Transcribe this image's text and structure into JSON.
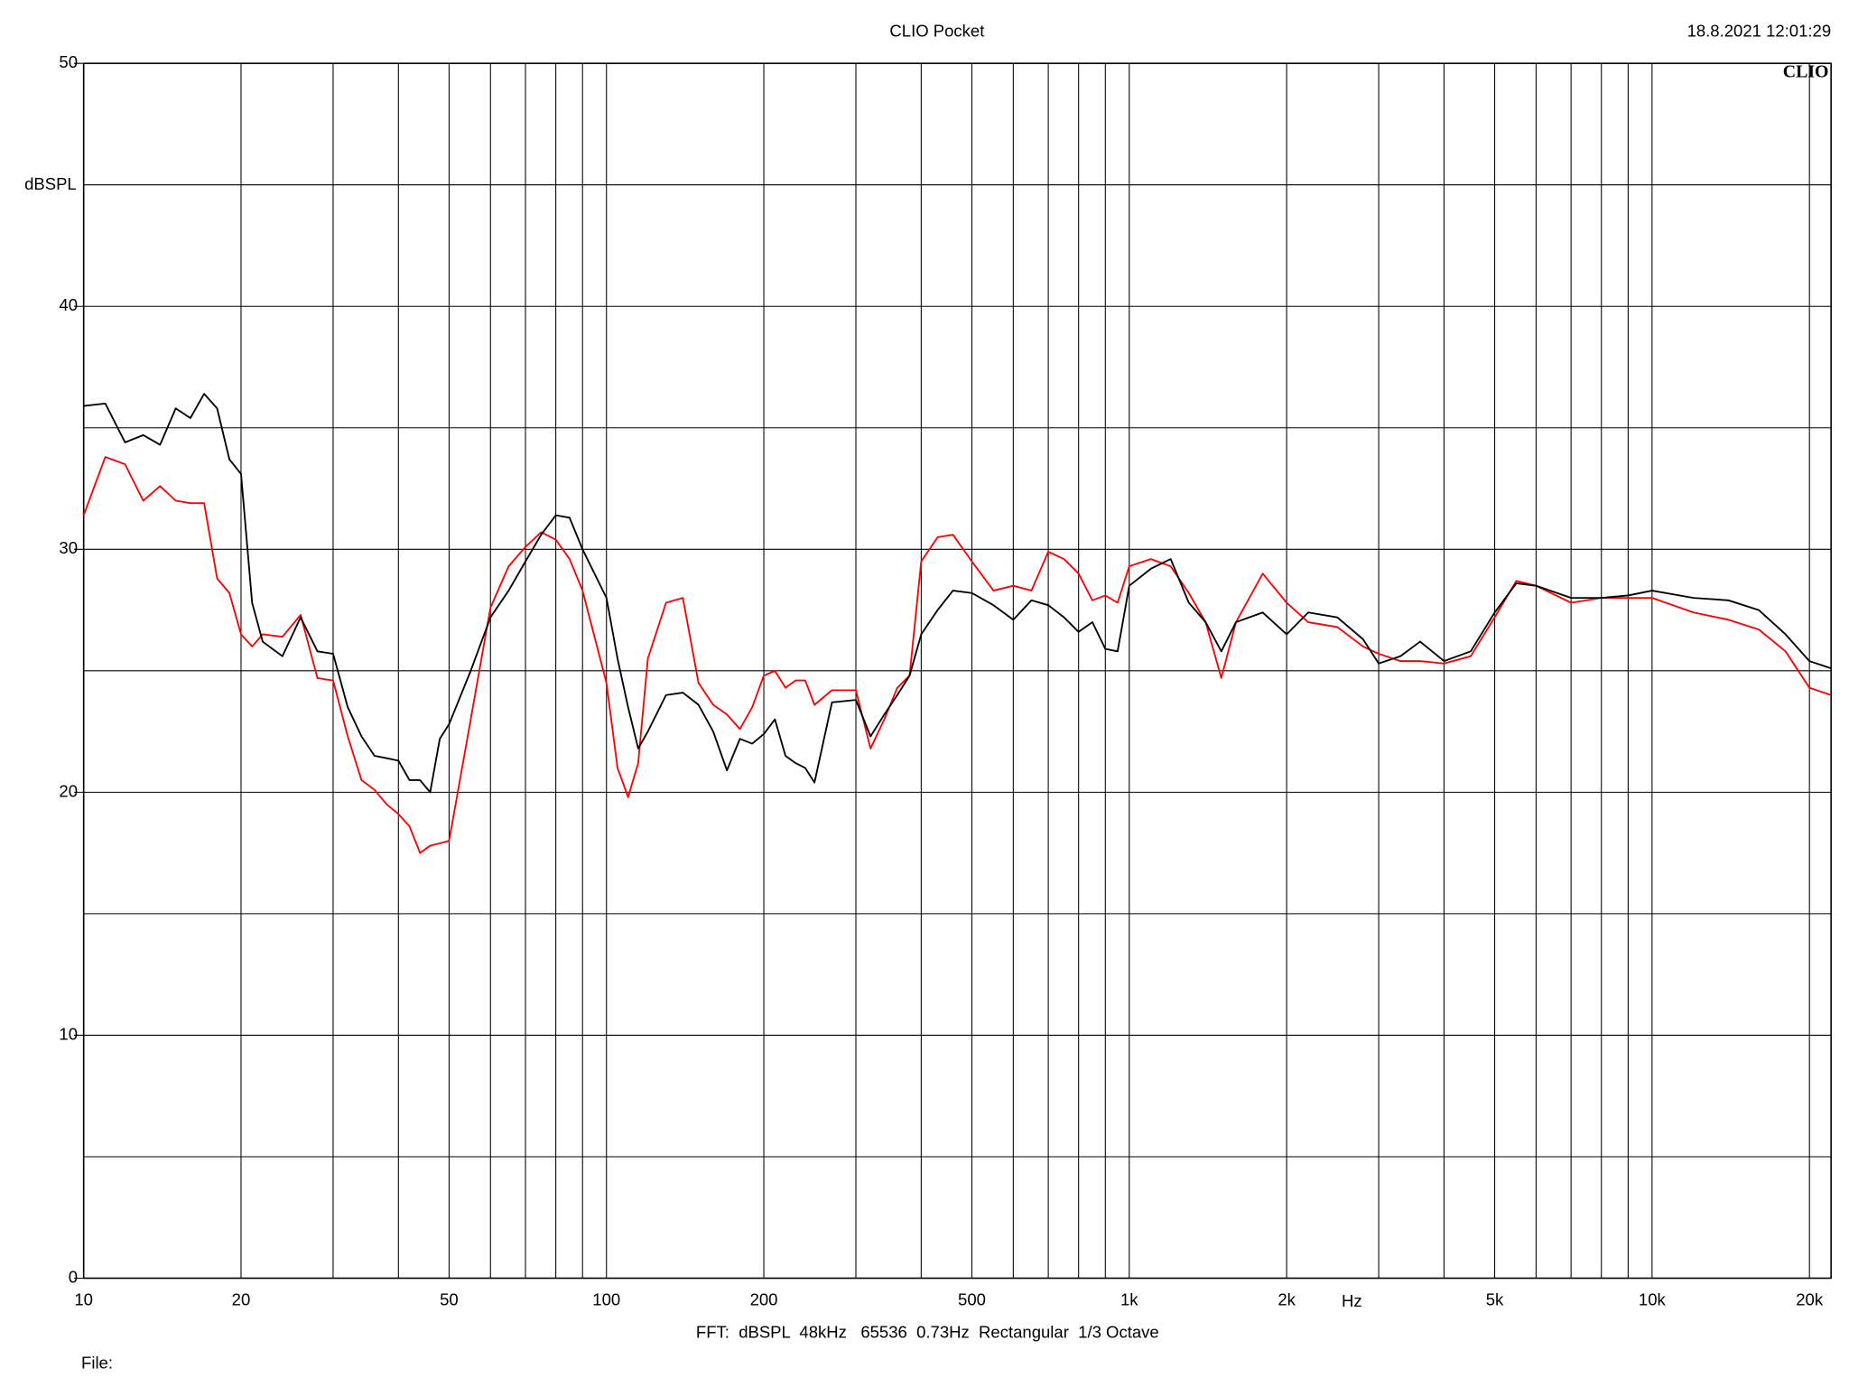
{
  "chart_data": {
    "type": "line",
    "title": "CLIO Pocket",
    "timestamp": "18.8.2021 12:01:29",
    "logo": "CLIO",
    "y_label": "dBSPL",
    "x_label": "Hz",
    "footer": "FFT:  dBSPL  48kHz   65536  0.73Hz  Rectangular  1/3 Octave",
    "file_label": "File:",
    "xscale": "log",
    "xlim": [
      10,
      22000
    ],
    "xticks": [
      10,
      20,
      50,
      100,
      200,
      500,
      {
        "value": 1000,
        "label": "1k"
      },
      {
        "value": 2000,
        "label": "2k"
      },
      {
        "value": 5000,
        "label": "5k"
      },
      {
        "value": 10000,
        "label": "10k"
      },
      {
        "value": 20000,
        "label": "20k"
      }
    ],
    "xminor": [
      30,
      40,
      60,
      70,
      80,
      90,
      300,
      400,
      600,
      700,
      800,
      900,
      3000,
      4000,
      6000,
      7000,
      8000,
      9000
    ],
    "ylim": [
      0,
      50
    ],
    "yticks": [
      0,
      10,
      20,
      30,
      40,
      50
    ],
    "yminor": [
      5,
      15,
      25,
      35,
      45
    ],
    "grid": true,
    "x": [
      10,
      11,
      12,
      13,
      14,
      15,
      16,
      17,
      18,
      19,
      20,
      21,
      22,
      24,
      26,
      28,
      30,
      32,
      34,
      36,
      38,
      40,
      42,
      44,
      46,
      48,
      50,
      55,
      60,
      65,
      70,
      75,
      80,
      85,
      90,
      100,
      105,
      110,
      115,
      120,
      130,
      140,
      150,
      160,
      170,
      180,
      190,
      200,
      210,
      220,
      230,
      240,
      250,
      270,
      300,
      320,
      340,
      360,
      380,
      400,
      430,
      460,
      500,
      550,
      600,
      650,
      700,
      750,
      800,
      850,
      900,
      950,
      1000,
      1100,
      1200,
      1300,
      1400,
      1500,
      1600,
      1800,
      2000,
      2200,
      2500,
      2800,
      3000,
      3300,
      3600,
      4000,
      4500,
      5000,
      5500,
      6000,
      7000,
      8000,
      9000,
      10000,
      12000,
      14000,
      16000,
      18000,
      20000,
      22000
    ],
    "series": [
      {
        "color": "#000000",
        "values": [
          35.9,
          36.0,
          34.4,
          34.7,
          34.3,
          35.8,
          35.4,
          36.4,
          35.8,
          33.7,
          33.1,
          27.8,
          26.2,
          25.6,
          27.2,
          25.8,
          25.7,
          23.5,
          22.3,
          21.5,
          21.4,
          21.3,
          20.5,
          20.5,
          20.0,
          22.2,
          22.8,
          25.0,
          27.2,
          28.3,
          29.5,
          30.6,
          31.4,
          31.3,
          30.0,
          28.0,
          25.5,
          23.5,
          21.8,
          22.5,
          24.0,
          24.1,
          23.6,
          22.5,
          20.9,
          22.2,
          22.0,
          22.4,
          23.0,
          21.5,
          21.2,
          21.0,
          20.4,
          23.7,
          23.8,
          22.3,
          23.2,
          24.0,
          24.8,
          26.5,
          27.5,
          28.3,
          28.2,
          27.7,
          27.1,
          27.9,
          27.7,
          27.2,
          26.6,
          27.0,
          25.9,
          25.8,
          28.5,
          29.2,
          29.6,
          27.8,
          27.0,
          25.8,
          27.0,
          27.4,
          26.5,
          27.4,
          27.2,
          26.3,
          25.3,
          25.6,
          26.2,
          25.4,
          25.8,
          27.4,
          28.6,
          28.5,
          28.0,
          28.0,
          28.1,
          28.3,
          28.0,
          27.9,
          27.5,
          26.5,
          25.4,
          25.1
        ]
      },
      {
        "color": "#ff0000",
        "values": [
          31.4,
          33.8,
          33.5,
          32.0,
          32.6,
          32.0,
          31.9,
          31.9,
          28.8,
          28.2,
          26.5,
          26.0,
          26.5,
          26.4,
          27.3,
          24.7,
          24.6,
          22.3,
          20.5,
          20.1,
          19.5,
          19.1,
          18.6,
          17.5,
          17.8,
          17.9,
          18.0,
          23.0,
          27.6,
          29.3,
          30.1,
          30.7,
          30.4,
          29.6,
          28.3,
          24.5,
          21.0,
          19.8,
          21.2,
          25.5,
          27.8,
          28.0,
          24.5,
          23.6,
          23.2,
          22.6,
          23.5,
          24.8,
          25.0,
          24.3,
          24.6,
          24.6,
          23.6,
          24.2,
          24.2,
          21.8,
          23.0,
          24.3,
          24.8,
          29.5,
          30.5,
          30.6,
          29.5,
          28.3,
          28.5,
          28.3,
          29.9,
          29.6,
          29.0,
          27.9,
          28.1,
          27.8,
          29.3,
          29.6,
          29.3,
          28.2,
          27.0,
          24.7,
          27.0,
          29.0,
          27.8,
          27.0,
          26.8,
          26.0,
          25.7,
          25.4,
          25.4,
          25.3,
          25.6,
          27.2,
          28.7,
          28.5,
          27.8,
          28.0,
          28.0,
          28.0,
          27.4,
          27.1,
          26.7,
          25.8,
          24.3,
          24.0
        ]
      }
    ]
  }
}
